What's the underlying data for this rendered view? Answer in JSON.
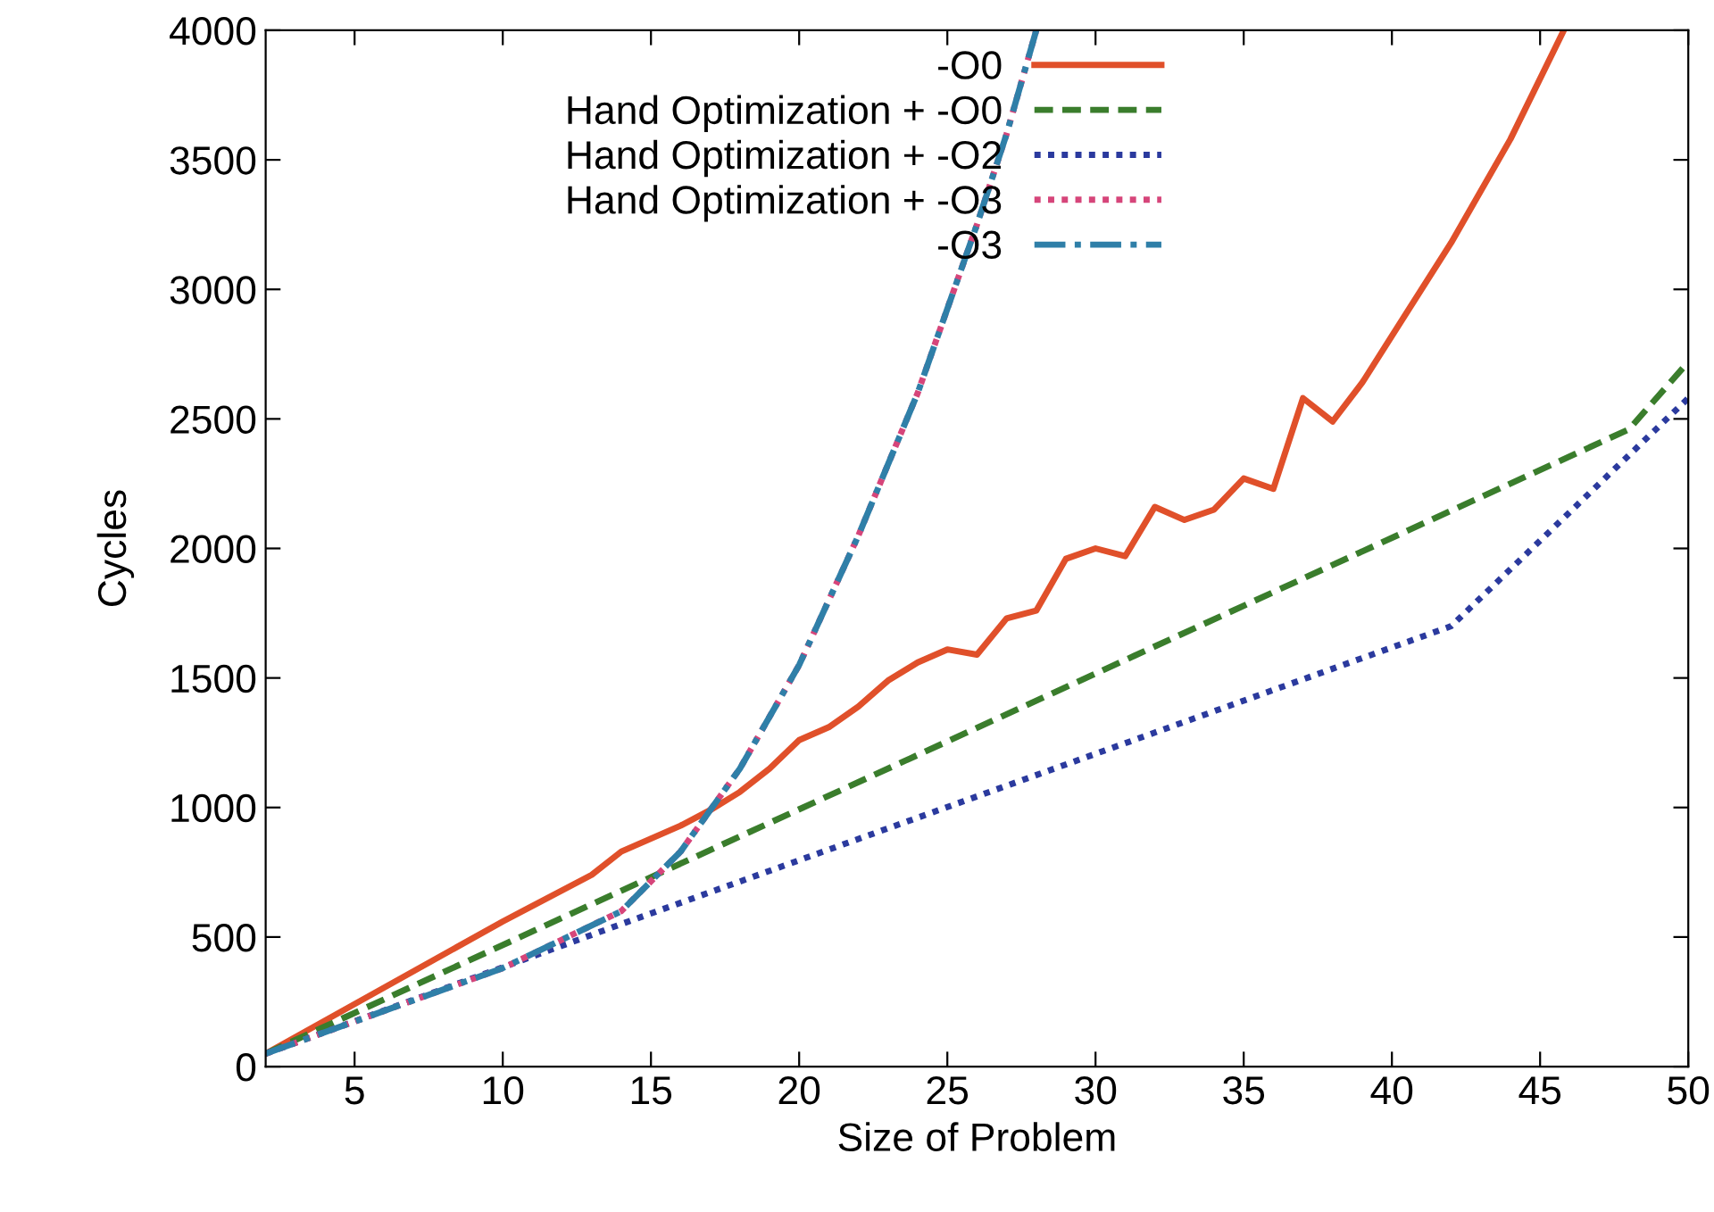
{
  "chart_data": {
    "type": "line",
    "xlabel": "Size of Problem",
    "ylabel": "Cycles",
    "xlim": [
      2,
      50
    ],
    "ylim": [
      0,
      4000
    ],
    "xticks": [
      5,
      10,
      15,
      20,
      25,
      30,
      35,
      40,
      45,
      50
    ],
    "yticks": [
      0,
      500,
      1000,
      1500,
      2000,
      2500,
      3000,
      3500,
      4000
    ],
    "grid": false,
    "legend": "top",
    "marker": "none",
    "series": [
      {
        "name": "-O0",
        "color": "#e0502a",
        "line_style": "solid",
        "x": [
          2,
          10,
          13,
          14,
          15,
          16,
          17,
          18,
          19,
          20,
          21,
          22,
          23,
          24,
          25,
          26,
          27,
          28,
          29,
          30,
          31,
          32,
          33,
          34,
          35,
          36,
          37,
          38,
          39,
          40,
          42,
          44,
          45.8
        ],
        "values": [
          50,
          560,
          740,
          830,
          880,
          930,
          990,
          1060,
          1150,
          1260,
          1310,
          1390,
          1490,
          1560,
          1610,
          1590,
          1730,
          1760,
          1960,
          2000,
          1970,
          2160,
          2110,
          2150,
          2270,
          2230,
          2580,
          2490,
          2640,
          2820,
          3180,
          3580,
          4000
        ]
      },
      {
        "name": "Hand Optimization + -O0",
        "color": "#3a7d2c",
        "line_style": "dashed",
        "x": [
          2,
          48,
          50
        ],
        "values": [
          50,
          2460,
          2720
        ]
      },
      {
        "name": "Hand Optimization + -O2",
        "color": "#2b3a9e",
        "line_style": "dotted",
        "x": [
          2,
          14,
          42,
          50
        ],
        "values": [
          50,
          550,
          1700,
          2580
        ]
      },
      {
        "name": "Hand Optimization + -O3",
        "color": "#d6457a",
        "line_style": "dotted",
        "x": [
          2,
          10,
          14,
          16,
          18,
          20,
          22,
          24,
          26,
          27,
          28
        ],
        "values": [
          50,
          380,
          600,
          830,
          1150,
          1550,
          2050,
          2600,
          3250,
          3600,
          4000
        ]
      },
      {
        "name": "-O3",
        "color": "#2f7fa8",
        "line_style": "dashdot",
        "x": [
          2,
          10,
          14,
          16,
          18,
          20,
          22,
          24,
          26,
          27,
          28
        ],
        "values": [
          50,
          380,
          600,
          830,
          1150,
          1550,
          2050,
          2600,
          3250,
          3600,
          4000
        ]
      }
    ]
  }
}
